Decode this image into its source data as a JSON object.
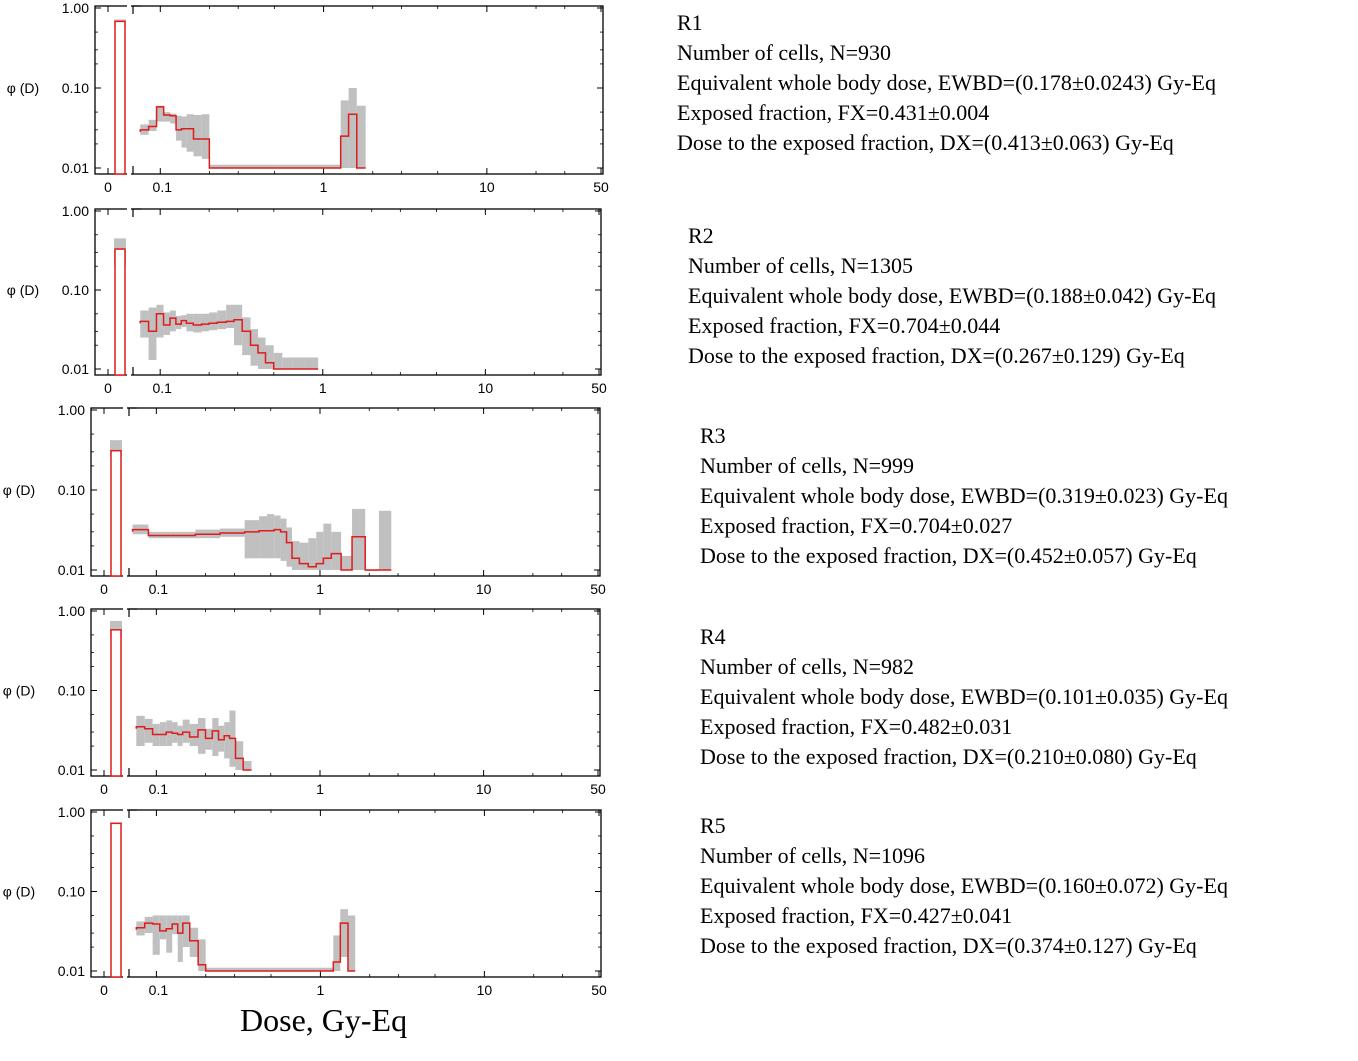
{
  "axis_label": "Dose, Gy-Eq",
  "colors": {
    "line": "#e01b1b",
    "band": "#c0c0c0",
    "axis": "#000000"
  },
  "chart_data": [
    {
      "type": "line",
      "title": "R1",
      "ylabel": "φ (D)",
      "xlabel": "Dose, Gy-Eq",
      "yscale": "log",
      "xscale": "log",
      "ylim": [
        0.01,
        1.0
      ],
      "xlim": [
        0.07,
        50
      ],
      "x_ticks": [
        "0",
        "0.1",
        "1",
        "10",
        "50"
      ],
      "y_ticks": [
        "1.00",
        "0.10",
        "0.01"
      ],
      "zero_bin": {
        "value": 0.68,
        "lo": 0.6,
        "hi": 0.72
      },
      "x": [
        0.08,
        0.09,
        0.1,
        0.11,
        0.12,
        0.13,
        0.14,
        0.15,
        0.17,
        0.19,
        0.21,
        1.2,
        1.35,
        1.5,
        1.7
      ],
      "values": [
        0.03,
        0.033,
        0.058,
        0.046,
        0.045,
        0.03,
        0.031,
        0.031,
        0.023,
        0.023,
        0.01,
        0.01,
        0.025,
        0.047,
        0.01
      ],
      "lo": [
        0.026,
        0.029,
        0.038,
        0.038,
        0.036,
        0.022,
        0.018,
        0.016,
        0.014,
        0.013,
        0.01,
        0.01,
        0.01,
        0.01,
        0.01
      ],
      "hi": [
        0.035,
        0.04,
        0.06,
        0.05,
        0.048,
        0.045,
        0.044,
        0.047,
        0.046,
        0.047,
        0.011,
        0.011,
        0.07,
        0.1,
        0.06
      ]
    },
    {
      "type": "line",
      "title": "R2",
      "ylabel": "φ (D)",
      "xlabel": "Dose, Gy-Eq",
      "yscale": "log",
      "xscale": "log",
      "ylim": [
        0.01,
        1.0
      ],
      "xlim": [
        0.07,
        50
      ],
      "x_ticks": [
        "0",
        "0.1",
        "1",
        "10",
        "50"
      ],
      "y_ticks": [
        "1.00",
        "0.10",
        "0.01"
      ],
      "zero_bin": {
        "value": 0.33,
        "lo": 0.2,
        "hi": 0.45
      },
      "x": [
        0.08,
        0.09,
        0.1,
        0.11,
        0.12,
        0.13,
        0.14,
        0.15,
        0.17,
        0.19,
        0.21,
        0.24,
        0.27,
        0.3,
        0.34,
        0.38,
        0.42,
        0.47,
        0.53,
        0.6,
        0.7,
        0.85
      ],
      "values": [
        0.04,
        0.03,
        0.05,
        0.036,
        0.044,
        0.037,
        0.041,
        0.038,
        0.036,
        0.037,
        0.038,
        0.039,
        0.04,
        0.042,
        0.03,
        0.02,
        0.016,
        0.012,
        0.01,
        0.01,
        0.01,
        0.01
      ],
      "lo": [
        0.025,
        0.013,
        0.025,
        0.027,
        0.03,
        0.032,
        0.034,
        0.03,
        0.029,
        0.03,
        0.031,
        0.032,
        0.033,
        0.02,
        0.015,
        0.011,
        0.01,
        0.01,
        0.01,
        0.01,
        0.01,
        0.01
      ],
      "hi": [
        0.055,
        0.06,
        0.065,
        0.052,
        0.055,
        0.047,
        0.048,
        0.05,
        0.05,
        0.05,
        0.052,
        0.055,
        0.065,
        0.065,
        0.045,
        0.032,
        0.025,
        0.02,
        0.016,
        0.014,
        0.014,
        0.014
      ]
    },
    {
      "type": "line",
      "title": "R3",
      "ylabel": "φ (D)",
      "xlabel": "Dose, Gy-Eq",
      "yscale": "log",
      "xscale": "log",
      "ylim": [
        0.01,
        1.0
      ],
      "xlim": [
        0.07,
        50
      ],
      "x_ticks": [
        "0",
        "0.1",
        "1",
        "10",
        "50"
      ],
      "y_ticks": [
        "1.00",
        "0.10",
        "0.01"
      ],
      "zero_bin": {
        "value": 0.31,
        "lo": 0.27,
        "hi": 0.42
      },
      "x": [
        0.08,
        0.1,
        0.15,
        0.2,
        0.3,
        0.4,
        0.45,
        0.5,
        0.55,
        0.6,
        0.65,
        0.7,
        0.8,
        0.9,
        1.0,
        1.1,
        1.25,
        1.45,
        1.7,
        2.1,
        2.5
      ],
      "values": [
        0.032,
        0.027,
        0.027,
        0.028,
        0.029,
        0.03,
        0.031,
        0.031,
        0.032,
        0.03,
        0.022,
        0.014,
        0.012,
        0.011,
        0.012,
        0.014,
        0.016,
        0.01,
        0.026,
        0.01,
        0.01
      ],
      "lo": [
        0.028,
        0.025,
        0.025,
        0.025,
        0.026,
        0.014,
        0.014,
        0.014,
        0.014,
        0.013,
        0.011,
        0.01,
        0.01,
        0.01,
        0.01,
        0.01,
        0.01,
        0.01,
        0.01,
        0.01,
        0.01
      ],
      "hi": [
        0.037,
        0.03,
        0.03,
        0.032,
        0.033,
        0.042,
        0.047,
        0.05,
        0.048,
        0.044,
        0.034,
        0.023,
        0.022,
        0.025,
        0.03,
        0.038,
        0.03,
        0.015,
        0.058,
        0.01,
        0.055
      ]
    },
    {
      "type": "line",
      "title": "R4",
      "ylabel": "φ (D)",
      "xlabel": "Dose, Gy-Eq",
      "yscale": "log",
      "xscale": "log",
      "ylim": [
        0.01,
        1.0
      ],
      "xlim": [
        0.07,
        50
      ],
      "x_ticks": [
        "0",
        "0.1",
        "1",
        "10",
        "50"
      ],
      "y_ticks": [
        "1.00",
        "0.10",
        "0.01"
      ],
      "zero_bin": {
        "value": 0.58,
        "lo": 0.45,
        "hi": 0.75
      },
      "x": [
        0.08,
        0.09,
        0.1,
        0.11,
        0.12,
        0.13,
        0.14,
        0.15,
        0.17,
        0.19,
        0.21,
        0.23,
        0.25,
        0.27,
        0.29,
        0.32,
        0.36
      ],
      "values": [
        0.035,
        0.033,
        0.028,
        0.028,
        0.03,
        0.029,
        0.028,
        0.03,
        0.026,
        0.032,
        0.025,
        0.031,
        0.024,
        0.027,
        0.025,
        0.014,
        0.01
      ],
      "lo": [
        0.02,
        0.022,
        0.02,
        0.02,
        0.02,
        0.022,
        0.02,
        0.022,
        0.02,
        0.016,
        0.018,
        0.015,
        0.017,
        0.014,
        0.011,
        0.01,
        0.01
      ],
      "hi": [
        0.048,
        0.044,
        0.038,
        0.04,
        0.042,
        0.04,
        0.036,
        0.043,
        0.038,
        0.045,
        0.033,
        0.045,
        0.036,
        0.04,
        0.056,
        0.023,
        0.013
      ]
    },
    {
      "type": "line",
      "title": "R5",
      "ylabel": "φ (D)",
      "xlabel": "Dose, Gy-Eq",
      "yscale": "log",
      "xscale": "log",
      "ylim": [
        0.01,
        1.0
      ],
      "xlim": [
        0.07,
        50
      ],
      "x_ticks": [
        "0",
        "0.1",
        "1",
        "10",
        "50"
      ],
      "y_ticks": [
        "1.00",
        "0.10",
        "0.01"
      ],
      "zero_bin": {
        "value": 0.72,
        "lo": 0.7,
        "hi": 0.74
      },
      "x": [
        0.08,
        0.09,
        0.1,
        0.11,
        0.12,
        0.13,
        0.14,
        0.15,
        0.17,
        0.19,
        0.21,
        1.15,
        1.25,
        1.4,
        1.55
      ],
      "values": [
        0.035,
        0.04,
        0.039,
        0.032,
        0.034,
        0.039,
        0.03,
        0.04,
        0.024,
        0.012,
        0.01,
        0.01,
        0.013,
        0.04,
        0.01
      ],
      "lo": [
        0.028,
        0.03,
        0.016,
        0.025,
        0.017,
        0.029,
        0.013,
        0.02,
        0.015,
        0.01,
        0.01,
        0.01,
        0.01,
        0.015,
        0.01
      ],
      "hi": [
        0.042,
        0.048,
        0.05,
        0.05,
        0.05,
        0.05,
        0.05,
        0.05,
        0.035,
        0.025,
        0.011,
        0.011,
        0.028,
        0.06,
        0.05
      ]
    }
  ],
  "panels": [
    {
      "id": "R1",
      "lines": [
        "R1",
        "Number of cells,  N=930",
        "Equivalent whole body dose, EWBD=(0.178±0.0243)  Gy-Eq",
        "Exposed fraction,  FX=0.431±0.004",
        "Dose to the exposed fraction, DX=(0.413±0.063)  Gy-Eq"
      ]
    },
    {
      "id": "R2",
      "lines": [
        "R2",
        "Number of cells,  N=1305",
        "Equivalent whole body dose, EWBD=(0.188±0.042)  Gy-Eq",
        "Exposed fraction,  FX=0.704±0.044",
        "Dose to the exposed fraction, DX=(0.267±0.129)  Gy-Eq"
      ]
    },
    {
      "id": "R3",
      "lines": [
        "R3",
        "Number of cells,  N=999",
        "Equivalent whole body dose, EWBD=(0.319±0.023)  Gy-Eq",
        "Exposed fraction,  FX=0.704±0.027",
        "Dose to the exposed fraction, DX=(0.452±0.057)  Gy-Eq"
      ]
    },
    {
      "id": "R4",
      "lines": [
        "R4",
        "Number of cells,  N=982",
        "Equivalent whole body dose, EWBD=(0.101±0.035)  Gy-Eq",
        "Exposed fraction,  FX=0.482±0.031",
        "Dose to the exposed fraction, DX=(0.210±0.080)  Gy-Eq"
      ]
    },
    {
      "id": "R5",
      "lines": [
        "R5",
        "Number of cells,  N=1096",
        "Equivalent whole body dose, EWBD=(0.160±0.072)  Gy-Eq",
        "Exposed fraction,  FX=0.427±0.041",
        "Dose to the exposed fraction, DX=(0.374±0.127)  Gy-Eq"
      ]
    }
  ]
}
